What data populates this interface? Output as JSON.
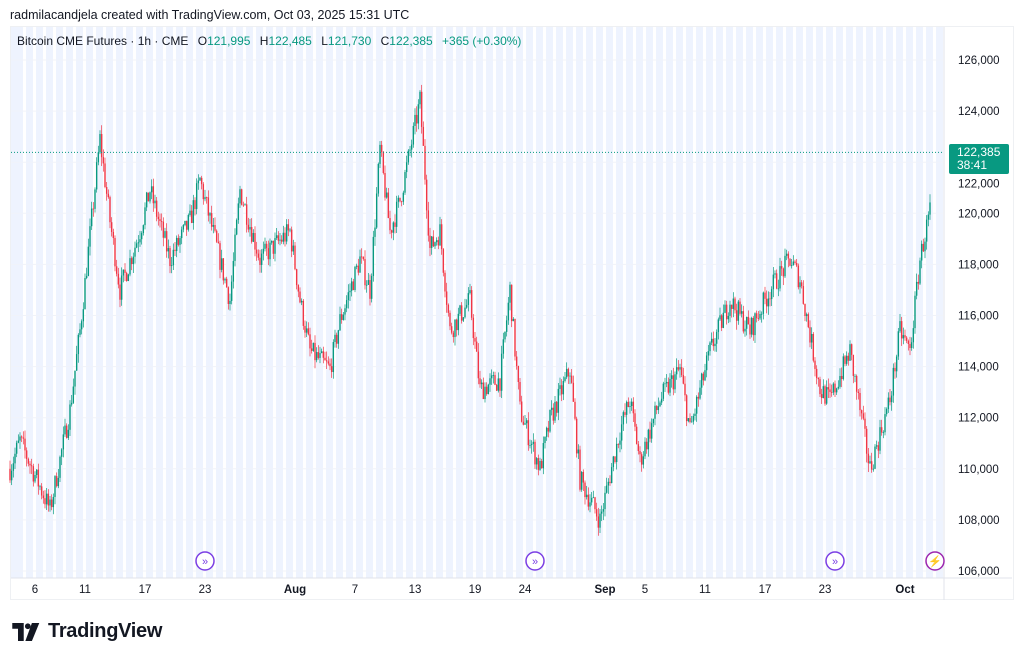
{
  "credit": "radmilacandjela created with TradingView.com, Oct 03, 2025 15:31 UTC",
  "legend": {
    "symbol": "Bitcoin CME Futures · 1h · CME",
    "o_label": "O",
    "o": "121,995",
    "h_label": "H",
    "h": "122,485",
    "l_label": "L",
    "l": "121,730",
    "c_label": "C",
    "c": "122,385",
    "change": "+365 (+0.30%)"
  },
  "price_tag": {
    "price": "122,385",
    "countdown": "38:41"
  },
  "logo": "TradingView",
  "colors": {
    "up": "#089981",
    "down": "#f23645",
    "event": "#7b3fe4",
    "session": "#eef3fe"
  },
  "chart_data": {
    "type": "candlestick",
    "interval": "1h",
    "ylim": [
      106000,
      126000
    ],
    "y_ticks": [
      "126,000",
      "124,000",
      "122,000",
      "120,000",
      "118,000",
      "116,000",
      "114,000",
      "112,000",
      "110,000",
      "108,000",
      "106,000"
    ],
    "x_ticks": [
      {
        "label": "6",
        "date": "2025-07-06"
      },
      {
        "label": "11",
        "date": "2025-07-11"
      },
      {
        "label": "17",
        "date": "2025-07-17"
      },
      {
        "label": "23",
        "date": "2025-07-23"
      },
      {
        "label": "Aug",
        "date": "2025-08-01",
        "bold": true
      },
      {
        "label": "7",
        "date": "2025-08-07"
      },
      {
        "label": "13",
        "date": "2025-08-13"
      },
      {
        "label": "19",
        "date": "2025-08-19"
      },
      {
        "label": "24",
        "date": "2025-08-24"
      },
      {
        "label": "Sep",
        "date": "2025-09-01",
        "bold": true
      },
      {
        "label": "5",
        "date": "2025-09-05"
      },
      {
        "label": "11",
        "date": "2025-09-11"
      },
      {
        "label": "17",
        "date": "2025-09-17"
      },
      {
        "label": "23",
        "date": "2025-09-23"
      },
      {
        "label": "Oct",
        "date": "2025-10-01",
        "bold": true
      }
    ],
    "last_price": 122385,
    "events": [
      {
        "date": "2025-07-23",
        "icon": "forward-icon"
      },
      {
        "date": "2025-08-25",
        "icon": "forward-icon"
      },
      {
        "date": "2025-09-24",
        "icon": "forward-icon"
      },
      {
        "date": "2025-10-04",
        "icon": "lightning-icon"
      }
    ],
    "price_path": [
      [
        "2025-07-03",
        110000
      ],
      [
        "2025-07-04",
        111100
      ],
      [
        "2025-07-07",
        108400
      ],
      [
        "2025-07-09",
        112300
      ],
      [
        "2025-07-10",
        115400
      ],
      [
        "2025-07-12",
        122900
      ],
      [
        "2025-07-13",
        119700
      ],
      [
        "2025-07-14",
        117000
      ],
      [
        "2025-07-16",
        119300
      ],
      [
        "2025-07-17",
        120900
      ],
      [
        "2025-07-19",
        118200
      ],
      [
        "2025-07-21",
        119700
      ],
      [
        "2025-07-22",
        121300
      ],
      [
        "2025-07-25",
        116600
      ],
      [
        "2025-07-26",
        120900
      ],
      [
        "2025-07-28",
        118200
      ],
      [
        "2025-07-31",
        119300
      ],
      [
        "2025-08-01",
        116600
      ],
      [
        "2025-08-02",
        114600
      ],
      [
        "2025-08-04",
        113900
      ],
      [
        "2025-08-05",
        115800
      ],
      [
        "2025-08-07",
        118200
      ],
      [
        "2025-08-08",
        117000
      ],
      [
        "2025-08-09",
        122500
      ],
      [
        "2025-08-10",
        119300
      ],
      [
        "2025-08-11",
        120500
      ],
      [
        "2025-08-13",
        124400
      ],
      [
        "2025-08-14",
        118600
      ],
      [
        "2025-08-15",
        119300
      ],
      [
        "2025-08-16",
        115400
      ],
      [
        "2025-08-18",
        116600
      ],
      [
        "2025-08-19",
        113100
      ],
      [
        "2025-08-21",
        113500
      ],
      [
        "2025-08-22",
        117000
      ],
      [
        "2025-08-23",
        112300
      ],
      [
        "2025-08-25",
        110000
      ],
      [
        "2025-08-26",
        111900
      ],
      [
        "2025-08-28",
        113900
      ],
      [
        "2025-08-29",
        109600
      ],
      [
        "2025-08-31",
        108000
      ],
      [
        "2025-09-02",
        111500
      ],
      [
        "2025-09-03",
        112700
      ],
      [
        "2025-09-04",
        110300
      ],
      [
        "2025-09-06",
        112700
      ],
      [
        "2025-09-08",
        113900
      ],
      [
        "2025-09-09",
        111500
      ],
      [
        "2025-09-11",
        114600
      ],
      [
        "2025-09-13",
        116600
      ],
      [
        "2025-09-15",
        115400
      ],
      [
        "2025-09-17",
        117000
      ],
      [
        "2025-09-19",
        118200
      ],
      [
        "2025-09-20",
        117400
      ],
      [
        "2025-09-22",
        113100
      ],
      [
        "2025-09-23",
        112700
      ],
      [
        "2025-09-25",
        114600
      ],
      [
        "2025-09-26",
        112300
      ],
      [
        "2025-09-27",
        110000
      ],
      [
        "2025-09-29",
        112700
      ],
      [
        "2025-09-30",
        115400
      ],
      [
        "2025-10-01",
        114600
      ],
      [
        "2025-10-02",
        118200
      ],
      [
        "2025-10-03",
        120100
      ],
      [
        "2025-10-03T15",
        122385
      ]
    ]
  }
}
